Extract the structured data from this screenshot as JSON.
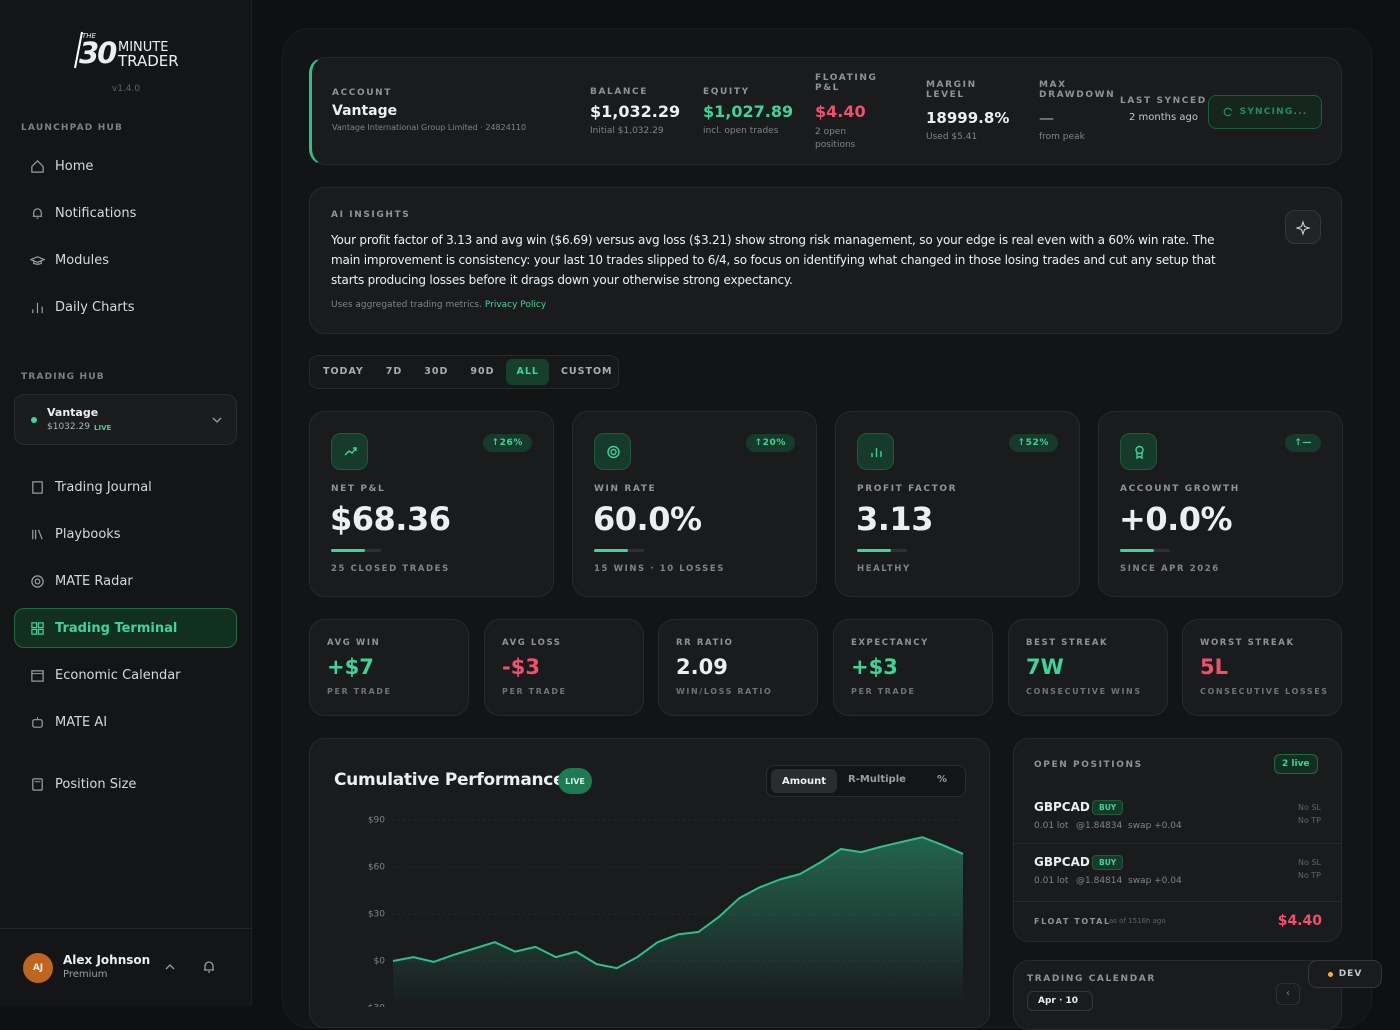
{
  "sidebar": {
    "logo": {
      "the": "THE",
      "number": "30",
      "line1": "MINUTE",
      "line2": "TRADER"
    },
    "version": "v1.4.0",
    "launchpad_label": "LAUNCHPAD HUB",
    "launchpad_items": [
      "Home",
      "Notifications",
      "Modules",
      "Daily Charts"
    ],
    "trading_label": "TRADING HUB",
    "account_selector": {
      "name": "Vantage",
      "balance": "$1032.29",
      "badge": "LIVE"
    },
    "trading_items": [
      "Trading Journal",
      "Playbooks",
      "MATE Radar",
      "Trading Terminal",
      "Economic Calendar",
      "MATE AI",
      "Position Size"
    ],
    "user": {
      "initials": "AJ",
      "name": "Alex Johnson",
      "plan": "Premium"
    }
  },
  "account_bar": {
    "account": {
      "label": "ACCOUNT",
      "name": "Vantage",
      "detail": "Vantage International Group Limited · 24824110"
    },
    "balance": {
      "label": "BALANCE",
      "value": "$1,032.29",
      "sub": "Initial $1,032.29"
    },
    "equity": {
      "label": "EQUITY",
      "value": "$1,027.89",
      "sub": "incl. open trades"
    },
    "floating": {
      "label": "FLOATING P&L",
      "value": "$4.40",
      "sub": "2 open positions"
    },
    "margin": {
      "label": "MARGIN LEVEL",
      "value": "18999.8%",
      "sub": "Used $5.41"
    },
    "drawdown": {
      "label": "MAX DRAWDOWN",
      "value": "—",
      "sub": "from peak"
    },
    "synced": {
      "label": "LAST SYNCED",
      "value": "2 months ago"
    },
    "sync_button": "SYNCING..."
  },
  "ai_insights": {
    "label": "AI INSIGHTS",
    "text": "Your profit factor of 3.13 and avg win ($6.69) versus avg loss ($3.21) show strong risk management, so your edge is real even with a 60% win rate. The main improvement is consistency: your last 10 trades slipped to 6/4, so focus on identifying what changed in those losing trades and cut any setup that starts producing losses before it drags down your otherwise strong expectancy.",
    "footnote": "Uses aggregated trading metrics.",
    "link": "Privacy Policy"
  },
  "range_tabs": [
    "TODAY",
    "7D",
    "30D",
    "90D",
    "ALL",
    "CUSTOM"
  ],
  "kpis": [
    {
      "badge": "↑26%",
      "label": "NET P&L",
      "value": "$68.36",
      "sub": "25 CLOSED TRADES"
    },
    {
      "badge": "↑20%",
      "label": "WIN RATE",
      "value": "60.0%",
      "sub": "15 WINS · 10 LOSSES"
    },
    {
      "badge": "↑52%",
      "label": "PROFIT FACTOR",
      "value": "3.13",
      "sub": "HEALTHY"
    },
    {
      "badge": "↑—",
      "label": "ACCOUNT GROWTH",
      "value": "+0.0%",
      "sub": "SINCE APR 2026"
    }
  ],
  "stats": [
    {
      "label": "AVG WIN",
      "value": "+$7",
      "sub": "PER TRADE"
    },
    {
      "label": "AVG LOSS",
      "value": "-$3",
      "sub": "PER TRADE"
    },
    {
      "label": "RR RATIO",
      "value": "2.09",
      "sub": "WIN/LOSS RATIO"
    },
    {
      "label": "EXPECTANCY",
      "value": "+$3",
      "sub": "PER TRADE"
    },
    {
      "label": "BEST STREAK",
      "value": "7W",
      "sub": "CONSECUTIVE WINS"
    },
    {
      "label": "WORST STREAK",
      "value": "5L",
      "sub": "CONSECUTIVE LOSSES"
    }
  ],
  "chart_data": {
    "type": "line",
    "title": "Cumulative Performance",
    "badge": "LIVE",
    "toggles": [
      "Amount",
      "R-Multiple",
      "%"
    ],
    "values": [
      0,
      2.5,
      -0.6,
      4,
      8,
      12,
      6,
      9,
      2.5,
      6,
      -2,
      -4.5,
      2.5,
      12,
      17,
      18.5,
      28,
      40,
      47,
      52,
      55.5,
      63,
      71.5,
      69.5,
      73,
      76,
      79,
      74,
      68.36
    ],
    "color": "#2fbf8a",
    "ylim": [
      -30,
      90
    ],
    "yticks": [
      {
        "value": 90,
        "label": "$90"
      },
      {
        "value": 60,
        "label": "$60"
      },
      {
        "value": 30,
        "label": "$30"
      },
      {
        "value": 0,
        "label": "$0"
      },
      {
        "value": -30,
        "label": "-$30"
      }
    ],
    "grid": true
  },
  "open_positions": {
    "label": "OPEN POSITIONS",
    "badge": "2 live",
    "positions": [
      {
        "symbol": "GBPCAD",
        "side": "BUY",
        "lot": "0.01 lot",
        "price": "@1.84834",
        "swap": "swap +0.04",
        "sl": "No SL",
        "tp": "No TP"
      },
      {
        "symbol": "GBPCAD",
        "side": "BUY",
        "lot": "0.01 lot",
        "price": "@1.84814",
        "swap": "swap +0.04",
        "sl": "No SL",
        "tp": "No TP"
      }
    ],
    "float_label": "FLOAT TOTAL",
    "float_time": "as of 1516h ago",
    "float_value": "$4.40"
  },
  "trading_calendar": {
    "label": "TRADING CALENDAR",
    "month": "Apr · 10"
  },
  "dev_badge": "DEV"
}
